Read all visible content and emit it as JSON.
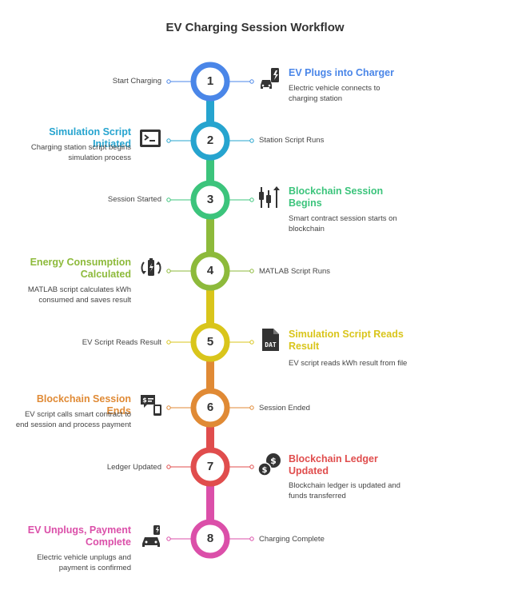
{
  "title": "EV Charging Session Workflow",
  "steps": [
    {
      "number": "1",
      "color": "#4A86E8",
      "short": "Start Charging",
      "heading": "EV Plugs into Charger",
      "description": "Electric vehicle connects to charging station",
      "icon": "ev-charger-icon"
    },
    {
      "number": "2",
      "color": "#26A4CF",
      "short": "Station Script Runs",
      "heading": "Simulation Script Initiated",
      "description": "Charging station script begins simulation process",
      "icon": "terminal-icon"
    },
    {
      "number": "3",
      "color": "#3CC47C",
      "short": "Session Started",
      "heading": "Blockchain Session Begins",
      "description": "Smart contract session starts on blockchain",
      "icon": "candlestick-icon"
    },
    {
      "number": "4",
      "color": "#8DBA3B",
      "short": "MATLAB Script Runs",
      "heading": "Energy Consumption Calculated",
      "description": "MATLAB script calculates kWh consumed and saves result",
      "icon": "battery-charging-icon"
    },
    {
      "number": "5",
      "color": "#D9C51B",
      "short": "EV Script Reads Result",
      "heading": "Simulation Script Reads Result",
      "description": "EV script reads kWh result from file",
      "icon": "dat-file-icon"
    },
    {
      "number": "6",
      "color": "#E08A35",
      "short": "Session Ended",
      "heading": "Blockchain Session Ends",
      "description": "EV script calls smart contract to end session and process payment",
      "icon": "payment-chat-icon"
    },
    {
      "number": "7",
      "color": "#E04D4D",
      "short": "Ledger Updated",
      "heading": "Blockchain Ledger Updated",
      "description": "Blockchain ledger is updated and funds transferred",
      "icon": "coins-icon"
    },
    {
      "number": "8",
      "color": "#DB4FA9",
      "short": "Charging Complete",
      "heading": "EV Unplugs, Payment Complete",
      "description": "Electric vehicle unplugs and payment is confirmed",
      "icon": "ev-car-icon"
    }
  ]
}
